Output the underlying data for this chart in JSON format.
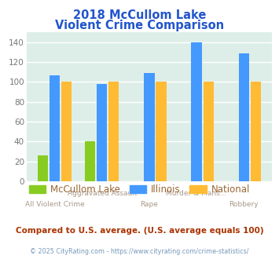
{
  "title_line1": "2018 McCullom Lake",
  "title_line2": "Violent Crime Comparison",
  "title_color": "#2255cc",
  "categories": [
    "All Violent Crime",
    "Aggravated Assault",
    "Rape",
    "Murder & Mans...",
    "Robbery"
  ],
  "series": {
    "McCullom Lake": [
      26,
      40,
      0,
      0,
      0
    ],
    "Illinois": [
      107,
      98,
      109,
      140,
      129
    ],
    "National": [
      100,
      100,
      100,
      100,
      100
    ]
  },
  "colors": {
    "McCullom Lake": "#88cc22",
    "Illinois": "#4499ff",
    "National": "#ffbb33"
  },
  "ylim": [
    0,
    150
  ],
  "yticks": [
    0,
    20,
    40,
    60,
    80,
    100,
    120,
    140
  ],
  "plot_bg": "#ddeee8",
  "grid_color": "#ffffff",
  "footnote1": "Compared to U.S. average. (U.S. average equals 100)",
  "footnote2": "© 2025 CityRating.com - https://www.cityrating.com/crime-statistics/",
  "footnote1_color": "#aa3300",
  "footnote2_color": "#7799bb",
  "legend_text_color": "#996633",
  "xlabel_top": [
    "",
    "Aggravated Assault",
    "",
    "Murder & Mans...",
    ""
  ],
  "xlabel_bot": [
    "All Violent Crime",
    "",
    "Rape",
    "",
    "Robbery"
  ],
  "xlabel_color": "#aa9988"
}
